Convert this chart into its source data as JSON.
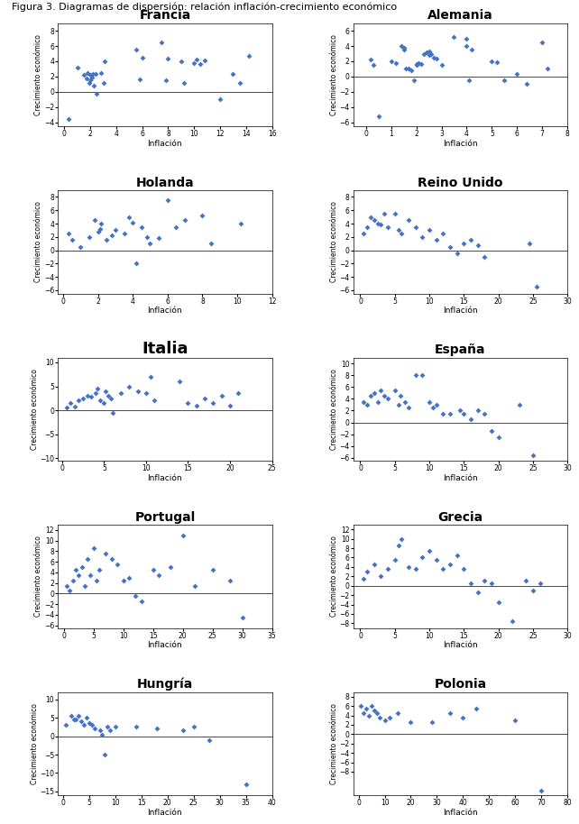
{
  "title": "Figura 3. Diagramas de dispersión: relación inflación-crecimiento económico",
  "dot_color": "#4472C4",
  "ylabel": "Crecimiento económico",
  "xlabel": "Inflación",
  "panels": [
    {
      "title": "Francia",
      "title_fontsize": 10,
      "title_bold": true,
      "xlim": [
        -0.5,
        16
      ],
      "ylim": [
        -4.5,
        9
      ],
      "xticks": [
        0,
        2,
        4,
        6,
        8,
        10,
        12,
        14,
        16
      ],
      "yticks": [
        -4,
        -2,
        0,
        2,
        4,
        6,
        8
      ],
      "x": [
        0.3,
        1.0,
        1.5,
        1.7,
        1.8,
        1.9,
        2.0,
        2.0,
        2.1,
        2.2,
        2.3,
        2.4,
        2.5,
        2.8,
        3.0,
        3.1,
        5.5,
        5.8,
        6.0,
        7.5,
        7.8,
        8.0,
        9.0,
        9.2,
        10.0,
        10.2,
        10.5,
        10.8,
        12.0,
        13.0,
        13.5,
        14.2
      ],
      "y": [
        -3.5,
        3.2,
        2.2,
        1.8,
        2.5,
        1.2,
        1.5,
        2.2,
        1.9,
        2.3,
        0.8,
        2.4,
        -0.2,
        2.5,
        1.2,
        4.0,
        5.5,
        1.7,
        4.5,
        6.5,
        1.5,
        4.3,
        4.0,
        1.2,
        3.8,
        4.2,
        3.6,
        4.1,
        -1.0,
        2.3,
        1.2,
        4.7
      ]
    },
    {
      "title": "Alemania",
      "title_fontsize": 10,
      "title_bold": true,
      "xlim": [
        -0.5,
        8
      ],
      "ylim": [
        -6.5,
        7
      ],
      "xticks": [
        0,
        1,
        2,
        3,
        4,
        5,
        6,
        7,
        8
      ],
      "yticks": [
        -6,
        -4,
        -2,
        0,
        2,
        4,
        6
      ],
      "x": [
        0.2,
        0.3,
        0.5,
        1.0,
        1.2,
        1.4,
        1.5,
        1.5,
        1.6,
        1.7,
        1.8,
        1.9,
        2.0,
        2.0,
        2.1,
        2.2,
        2.3,
        2.4,
        2.5,
        2.5,
        2.6,
        2.7,
        2.8,
        3.0,
        3.5,
        4.0,
        4.0,
        4.1,
        4.2,
        5.0,
        5.2,
        5.5,
        6.0,
        6.4,
        7.0,
        7.2
      ],
      "y": [
        2.2,
        1.5,
        -5.2,
        2.0,
        1.8,
        4.0,
        3.8,
        3.5,
        1.0,
        1.1,
        0.8,
        -0.5,
        1.5,
        1.7,
        1.8,
        1.6,
        3.0,
        3.2,
        2.8,
        3.3,
        3.0,
        2.5,
        2.3,
        1.5,
        5.2,
        5.0,
        4.0,
        -0.5,
        3.5,
        2.0,
        1.9,
        -0.5,
        0.4,
        -1.0,
        4.5,
        1.0
      ]
    },
    {
      "title": "Holanda",
      "title_fontsize": 10,
      "title_bold": true,
      "xlim": [
        -0.3,
        12
      ],
      "ylim": [
        -6.5,
        9
      ],
      "xticks": [
        0,
        2,
        4,
        6,
        8,
        10,
        12
      ],
      "yticks": [
        -6,
        -4,
        -2,
        0,
        2,
        4,
        6,
        8
      ],
      "x": [
        0.3,
        0.5,
        1.0,
        1.5,
        1.8,
        2.0,
        2.1,
        2.2,
        2.5,
        2.8,
        3.0,
        3.5,
        3.8,
        4.0,
        4.2,
        4.5,
        4.8,
        5.0,
        5.5,
        6.0,
        6.5,
        7.0,
        8.0,
        8.5,
        10.2
      ],
      "y": [
        2.5,
        1.5,
        0.5,
        2.0,
        4.5,
        2.8,
        3.2,
        4.0,
        1.5,
        2.2,
        3.0,
        2.5,
        5.0,
        4.2,
        -2.0,
        3.5,
        2.0,
        1.0,
        1.8,
        7.5,
        3.5,
        4.5,
        5.2,
        1.0,
        4.0
      ]
    },
    {
      "title": "Reino Unido",
      "title_fontsize": 10,
      "title_bold": true,
      "xlim": [
        -1,
        30
      ],
      "ylim": [
        -6.5,
        9
      ],
      "xticks": [
        0,
        5,
        10,
        15,
        20,
        25,
        30
      ],
      "yticks": [
        -6,
        -4,
        -2,
        0,
        2,
        4,
        6,
        8
      ],
      "x": [
        0.5,
        1.0,
        1.5,
        2.0,
        2.5,
        3.0,
        3.5,
        4.0,
        5.0,
        5.5,
        6.0,
        7.0,
        8.0,
        9.0,
        10.0,
        11.0,
        12.0,
        13.0,
        14.0,
        15.0,
        16.0,
        17.0,
        18.0,
        24.5,
        25.5
      ],
      "y": [
        2.5,
        3.5,
        5.0,
        4.5,
        4.0,
        3.8,
        5.5,
        3.5,
        5.5,
        3.0,
        2.5,
        4.5,
        3.5,
        2.0,
        3.0,
        1.5,
        2.5,
        0.5,
        -0.5,
        1.0,
        1.5,
        0.8,
        -1.0,
        1.0,
        -5.5
      ]
    },
    {
      "title": "Italia",
      "title_fontsize": 13,
      "title_bold": true,
      "xlim": [
        -0.5,
        25
      ],
      "ylim": [
        -10.5,
        11
      ],
      "xticks": [
        0,
        5,
        10,
        15,
        20,
        25
      ],
      "yticks": [
        -10,
        -5,
        0,
        5,
        10
      ],
      "x": [
        0.5,
        1.0,
        1.5,
        2.0,
        2.5,
        3.0,
        3.5,
        4.0,
        4.2,
        4.5,
        5.0,
        5.2,
        5.5,
        5.8,
        6.0,
        7.0,
        8.0,
        9.0,
        10.0,
        10.5,
        11.0,
        14.0,
        15.0,
        16.0,
        17.0,
        18.0,
        19.0,
        20.0,
        21.0
      ],
      "y": [
        0.5,
        1.5,
        0.8,
        2.0,
        2.5,
        3.0,
        2.8,
        3.5,
        4.5,
        2.0,
        1.5,
        4.0,
        3.0,
        2.5,
        -0.5,
        3.5,
        5.0,
        4.0,
        3.5,
        7.0,
        2.0,
        6.0,
        1.5,
        1.0,
        2.5,
        1.5,
        3.0,
        1.0,
        3.5
      ]
    },
    {
      "title": "España",
      "title_fontsize": 10,
      "title_bold": true,
      "xlim": [
        -1,
        30
      ],
      "ylim": [
        -6.5,
        11
      ],
      "xticks": [
        0,
        5,
        10,
        15,
        20,
        25,
        30
      ],
      "yticks": [
        -6,
        -4,
        -2,
        0,
        2,
        4,
        6,
        8,
        10
      ],
      "x": [
        0.5,
        1.0,
        1.5,
        2.0,
        2.5,
        3.0,
        3.5,
        4.0,
        5.0,
        5.5,
        5.8,
        6.5,
        7.0,
        8.0,
        9.0,
        10.0,
        10.5,
        11.0,
        12.0,
        13.0,
        14.5,
        15.0,
        16.0,
        17.0,
        18.0,
        19.0,
        20.0,
        23.0,
        25.0
      ],
      "y": [
        3.5,
        3.0,
        4.5,
        5.0,
        3.5,
        5.5,
        4.5,
        4.0,
        5.5,
        3.0,
        4.5,
        3.5,
        2.5,
        8.0,
        8.0,
        3.5,
        2.5,
        3.0,
        1.5,
        1.5,
        2.0,
        1.5,
        0.5,
        2.0,
        1.5,
        -1.5,
        -2.5,
        3.0,
        -5.5
      ]
    },
    {
      "title": "Portugal",
      "title_fontsize": 10,
      "title_bold": true,
      "xlim": [
        -1,
        35
      ],
      "ylim": [
        -6.5,
        13
      ],
      "xticks": [
        0,
        5,
        10,
        15,
        20,
        25,
        30,
        35
      ],
      "yticks": [
        -6,
        -4,
        -2,
        0,
        2,
        4,
        6,
        8,
        10,
        12
      ],
      "x": [
        0.5,
        1.0,
        1.5,
        2.0,
        2.5,
        3.0,
        3.5,
        4.0,
        4.5,
        5.0,
        5.5,
        6.0,
        7.0,
        8.0,
        9.0,
        10.0,
        11.0,
        12.0,
        13.0,
        15.0,
        16.0,
        18.0,
        20.0,
        22.0,
        25.0,
        28.0,
        30.0
      ],
      "y": [
        1.5,
        0.5,
        2.5,
        4.5,
        3.5,
        5.0,
        1.5,
        6.5,
        3.5,
        8.5,
        2.5,
        4.5,
        7.5,
        6.5,
        5.5,
        2.5,
        3.0,
        -0.5,
        -1.5,
        4.5,
        3.5,
        5.0,
        11.0,
        1.5,
        4.5,
        2.5,
        -4.5
      ]
    },
    {
      "title": "Grecia",
      "title_fontsize": 10,
      "title_bold": true,
      "xlim": [
        -1,
        30
      ],
      "ylim": [
        -9,
        13
      ],
      "xticks": [
        0,
        5,
        10,
        15,
        20,
        25,
        30
      ],
      "yticks": [
        -8,
        -6,
        -4,
        -2,
        0,
        2,
        4,
        6,
        8,
        10,
        12
      ],
      "x": [
        0.5,
        1.0,
        2.0,
        3.0,
        4.0,
        5.0,
        5.5,
        6.0,
        7.0,
        8.0,
        9.0,
        10.0,
        11.0,
        12.0,
        13.0,
        14.0,
        15.0,
        16.0,
        17.0,
        18.0,
        19.0,
        20.0,
        22.0,
        24.0,
        25.0,
        26.0
      ],
      "y": [
        1.5,
        3.0,
        4.5,
        2.0,
        3.5,
        5.5,
        8.5,
        10.0,
        4.0,
        3.5,
        6.0,
        7.5,
        5.5,
        3.5,
        4.5,
        6.5,
        3.5,
        0.5,
        -1.5,
        1.0,
        0.5,
        -3.5,
        -7.5,
        1.0,
        -1.0,
        0.5
      ]
    },
    {
      "title": "Hungría",
      "title_fontsize": 10,
      "title_bold": true,
      "xlim": [
        -1,
        40
      ],
      "ylim": [
        -16,
        12
      ],
      "xticks": [
        0,
        5,
        10,
        15,
        20,
        25,
        30,
        35,
        40
      ],
      "yticks": [
        -15,
        -10,
        -5,
        0,
        5,
        10
      ],
      "x": [
        0.5,
        1.5,
        2.0,
        2.5,
        3.0,
        3.5,
        4.0,
        4.5,
        5.0,
        5.5,
        6.0,
        7.0,
        7.5,
        8.0,
        8.5,
        9.0,
        10.0,
        14.0,
        18.0,
        23.0,
        25.0,
        28.0,
        35.0
      ],
      "y": [
        3.0,
        5.5,
        4.5,
        4.5,
        5.5,
        4.0,
        3.0,
        5.0,
        3.5,
        3.0,
        2.0,
        1.5,
        0.5,
        -5.0,
        2.5,
        1.5,
        2.5,
        2.5,
        2.0,
        1.5,
        2.5,
        -1.0,
        -13.0
      ]
    },
    {
      "title": "Polonia",
      "title_fontsize": 10,
      "title_bold": true,
      "xlim": [
        -2,
        80
      ],
      "ylim": [
        -13,
        9
      ],
      "xticks": [
        0,
        10,
        20,
        30,
        40,
        50,
        60,
        70,
        80
      ],
      "yticks": [
        -8,
        -6,
        -4,
        -2,
        0,
        2,
        4,
        6,
        8
      ],
      "x": [
        1.0,
        2.0,
        3.0,
        4.0,
        5.0,
        6.0,
        7.0,
        8.0,
        10.0,
        12.0,
        15.0,
        20.0,
        28.0,
        35.0,
        40.0,
        45.0,
        60.0,
        70.0
      ],
      "y": [
        6.0,
        4.5,
        5.5,
        4.0,
        6.0,
        5.0,
        4.5,
        3.5,
        3.0,
        3.5,
        4.5,
        2.5,
        2.5,
        4.5,
        3.5,
        5.5,
        3.0,
        -12.0
      ]
    }
  ]
}
